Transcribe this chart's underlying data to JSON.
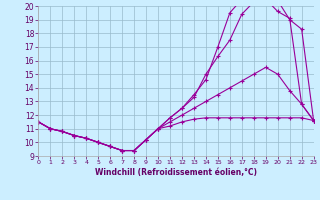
{
  "xlabel": "Windchill (Refroidissement éolien,°C)",
  "bg_color": "#cceeff",
  "grid_color": "#99bbcc",
  "line_color": "#990099",
  "xmin": 0,
  "xmax": 23,
  "ymin": 9,
  "ymax": 20,
  "series": [
    {
      "x": [
        0,
        1,
        2,
        3,
        4,
        5,
        6,
        7,
        8,
        9,
        10,
        11,
        12,
        13,
        14,
        15,
        16,
        17,
        18,
        19,
        20,
        21,
        22,
        23
      ],
      "y": [
        11.5,
        11.0,
        10.8,
        10.5,
        10.3,
        10.0,
        9.7,
        9.4,
        9.4,
        10.2,
        11.0,
        11.2,
        11.5,
        11.7,
        11.8,
        11.8,
        11.8,
        11.8,
        11.8,
        11.8,
        11.8,
        11.8,
        11.8,
        11.6
      ]
    },
    {
      "x": [
        0,
        1,
        2,
        3,
        4,
        5,
        6,
        7,
        8,
        9,
        10,
        11,
        12,
        13,
        14,
        15,
        16,
        17,
        18,
        19,
        20,
        21,
        22,
        23
      ],
      "y": [
        11.5,
        11.0,
        10.8,
        10.5,
        10.3,
        10.0,
        9.7,
        9.4,
        9.4,
        10.2,
        11.0,
        11.5,
        12.0,
        12.5,
        13.0,
        13.5,
        14.0,
        14.5,
        15.0,
        15.5,
        15.0,
        13.8,
        12.8,
        11.6
      ]
    },
    {
      "x": [
        0,
        1,
        2,
        3,
        4,
        5,
        6,
        7,
        8,
        9,
        10,
        11,
        12,
        13,
        14,
        15,
        16,
        17,
        18,
        19,
        20,
        21,
        22,
        23
      ],
      "y": [
        11.5,
        11.0,
        10.8,
        10.5,
        10.3,
        10.0,
        9.7,
        9.4,
        9.4,
        10.2,
        11.0,
        11.8,
        12.5,
        13.3,
        15.0,
        16.3,
        17.5,
        19.4,
        20.3,
        20.2,
        20.4,
        19.0,
        18.3,
        11.6
      ]
    },
    {
      "x": [
        0,
        1,
        2,
        3,
        4,
        5,
        6,
        7,
        8,
        9,
        10,
        11,
        12,
        13,
        14,
        15,
        16,
        17,
        18,
        19,
        20,
        21,
        22,
        23
      ],
      "y": [
        11.5,
        11.0,
        10.8,
        10.5,
        10.3,
        10.0,
        9.7,
        9.4,
        9.4,
        10.2,
        11.0,
        11.8,
        12.5,
        13.5,
        14.6,
        17.0,
        19.5,
        20.5,
        20.3,
        20.5,
        19.6,
        19.1,
        12.8,
        11.6
      ]
    }
  ],
  "yticks": [
    9,
    10,
    11,
    12,
    13,
    14,
    15,
    16,
    17,
    18,
    19,
    20
  ],
  "xticks": [
    0,
    1,
    2,
    3,
    4,
    5,
    6,
    7,
    8,
    9,
    10,
    11,
    12,
    13,
    14,
    15,
    16,
    17,
    18,
    19,
    20,
    21,
    22,
    23
  ]
}
